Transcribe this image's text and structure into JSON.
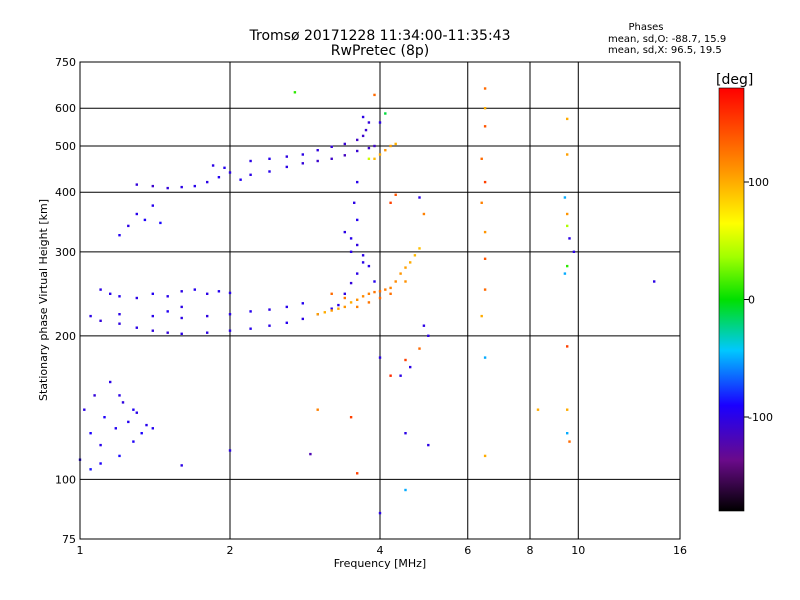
{
  "chart_data": {
    "type": "scatter",
    "title": "Tromsø 20171228 11:34:00-11:35:43",
    "subtitle": "RwPretec (8p)",
    "xlabel": "Frequency [MHz]",
    "ylabel": "Stationary phase Virtual Height [km]",
    "x_scale": "log",
    "y_scale": "log",
    "xlim": [
      1,
      16
    ],
    "ylim": [
      75,
      750
    ],
    "x_ticks": [
      1,
      2,
      4,
      6,
      8,
      10,
      16
    ],
    "x_tick_labels": [
      "1",
      "2",
      "4",
      "6",
      "8",
      "10",
      "16"
    ],
    "y_ticks": [
      75,
      100,
      200,
      300,
      400,
      500,
      600,
      750
    ],
    "y_tick_labels": [
      "75",
      "100",
      "200",
      "300",
      "400",
      "500",
      "600",
      "750"
    ],
    "grid": true,
    "phase_stats": {
      "heading": "Phases",
      "line_o": "mean, sd,O: -88.7, 15.9",
      "line_x": "mean, sd,X:  96.5, 19.5"
    },
    "colorbar": {
      "label": "[deg]",
      "ticks": [
        100,
        0,
        -100
      ],
      "tick_labels": [
        "100",
        "0",
        "-100"
      ],
      "range": [
        -180,
        180
      ]
    },
    "series": [
      {
        "points": [
          [
            1.0,
            110,
            -95
          ],
          [
            1.02,
            140,
            -100
          ],
          [
            1.05,
            125,
            -90
          ],
          [
            1.07,
            150,
            -105
          ],
          [
            1.1,
            118,
            -98
          ],
          [
            1.12,
            135,
            -92
          ],
          [
            1.15,
            160,
            -100
          ],
          [
            1.18,
            128,
            -95
          ],
          [
            1.2,
            112,
            -88
          ],
          [
            1.22,
            145,
            -102
          ],
          [
            1.25,
            132,
            -96
          ],
          [
            1.28,
            120,
            -93
          ],
          [
            1.3,
            138,
            -99
          ],
          [
            1.33,
            125,
            -90
          ],
          [
            1.36,
            130,
            -97
          ],
          [
            1.4,
            128,
            -95
          ],
          [
            1.05,
            105,
            -85
          ],
          [
            1.1,
            108,
            -92
          ],
          [
            1.2,
            150,
            -100
          ],
          [
            1.28,
            140,
            -94
          ],
          [
            1.2,
            325,
            -95
          ],
          [
            1.25,
            340,
            -100
          ],
          [
            1.3,
            360,
            -98
          ],
          [
            1.35,
            350,
            -92
          ],
          [
            1.4,
            375,
            -97
          ],
          [
            1.45,
            345,
            -88
          ],
          [
            1.3,
            415,
            -105
          ],
          [
            1.4,
            412,
            -110
          ],
          [
            1.5,
            408,
            -105
          ],
          [
            1.6,
            410,
            -100
          ],
          [
            1.7,
            412,
            -98
          ],
          [
            1.8,
            420,
            -100
          ],
          [
            1.9,
            430,
            -95
          ],
          [
            2.0,
            440,
            -100
          ],
          [
            2.1,
            425,
            -95
          ],
          [
            2.2,
            435,
            -100
          ],
          [
            2.4,
            442,
            -98
          ],
          [
            2.6,
            452,
            -100
          ],
          [
            2.8,
            460,
            -105
          ],
          [
            3.0,
            465,
            -110
          ],
          [
            3.2,
            470,
            -112
          ],
          [
            3.4,
            478,
            -115
          ],
          [
            3.6,
            488,
            -108
          ],
          [
            3.8,
            495,
            -110
          ],
          [
            3.9,
            500,
            -112
          ],
          [
            2.2,
            465,
            -100
          ],
          [
            2.4,
            470,
            -98
          ],
          [
            2.6,
            475,
            -102
          ],
          [
            2.8,
            480,
            -100
          ],
          [
            3.0,
            490,
            -103
          ],
          [
            3.2,
            498,
            -105
          ],
          [
            3.4,
            505,
            -108
          ],
          [
            3.6,
            515,
            -112
          ],
          [
            3.7,
            525,
            -110
          ],
          [
            3.75,
            540,
            -108
          ],
          [
            3.8,
            560,
            -105
          ],
          [
            3.7,
            575,
            -100
          ],
          [
            1.85,
            455,
            -100
          ],
          [
            1.95,
            450,
            -96
          ],
          [
            3.9,
            470,
            95
          ],
          [
            4.0,
            480,
            100
          ],
          [
            4.1,
            490,
            110
          ],
          [
            4.2,
            500,
            105
          ],
          [
            4.3,
            505,
            98
          ],
          [
            1.1,
            250,
            -100
          ],
          [
            1.15,
            245,
            -98
          ],
          [
            1.2,
            242,
            -96
          ],
          [
            1.3,
            240,
            -100
          ],
          [
            1.4,
            245,
            -95
          ],
          [
            1.5,
            242,
            -98
          ],
          [
            1.6,
            248,
            -100
          ],
          [
            1.7,
            250,
            -97
          ],
          [
            1.8,
            245,
            -100
          ],
          [
            1.9,
            248,
            -96
          ],
          [
            2.0,
            246,
            -98
          ],
          [
            1.6,
            230,
            -100
          ],
          [
            1.5,
            225,
            -95
          ],
          [
            1.05,
            220,
            -100
          ],
          [
            1.1,
            215,
            -105
          ],
          [
            1.2,
            212,
            -102
          ],
          [
            1.3,
            208,
            -100
          ],
          [
            1.4,
            205,
            -103
          ],
          [
            1.5,
            203,
            -105
          ],
          [
            1.6,
            202,
            -100
          ],
          [
            1.8,
            203,
            -102
          ],
          [
            2.0,
            205,
            -100
          ],
          [
            2.2,
            207,
            -98
          ],
          [
            2.4,
            210,
            -100
          ],
          [
            2.6,
            213,
            -97
          ],
          [
            2.8,
            217,
            -100
          ],
          [
            3.0,
            222,
            -98
          ],
          [
            3.2,
            228,
            -95
          ],
          [
            1.2,
            222,
            -100
          ],
          [
            1.4,
            220,
            -98
          ],
          [
            1.6,
            218,
            -100
          ],
          [
            1.8,
            220,
            -102
          ],
          [
            2.0,
            222,
            -100
          ],
          [
            2.2,
            225,
            -97
          ],
          [
            2.4,
            227,
            -100
          ],
          [
            2.6,
            230,
            -98
          ],
          [
            2.8,
            234,
            -96
          ],
          [
            3.3,
            232,
            -100
          ],
          [
            3.4,
            245,
            -102
          ],
          [
            3.5,
            258,
            -105
          ],
          [
            3.6,
            270,
            -100
          ],
          [
            3.7,
            285,
            -98
          ],
          [
            3.5,
            300,
            -100
          ],
          [
            3.6,
            310,
            -102
          ],
          [
            3.7,
            295,
            -100
          ],
          [
            3.8,
            280,
            -98
          ],
          [
            3.9,
            260,
            -96
          ],
          [
            3.4,
            330,
            -100
          ],
          [
            3.5,
            320,
            -98
          ],
          [
            3.6,
            350,
            -95
          ],
          [
            3.55,
            380,
            -100
          ],
          [
            3.6,
            420,
            -98
          ],
          [
            3.0,
            222,
            105
          ],
          [
            3.1,
            224,
            100
          ],
          [
            3.2,
            226,
            108
          ],
          [
            3.3,
            228,
            102
          ],
          [
            3.4,
            230,
            110
          ],
          [
            3.5,
            235,
            100
          ],
          [
            3.6,
            238,
            112
          ],
          [
            3.7,
            242,
            115
          ],
          [
            3.8,
            245,
            120
          ],
          [
            3.9,
            247,
            125
          ],
          [
            4.0,
            248,
            128
          ],
          [
            4.1,
            250,
            122
          ],
          [
            4.2,
            252,
            118
          ],
          [
            4.3,
            260,
            115
          ],
          [
            4.4,
            270,
            110
          ],
          [
            4.5,
            278,
            105
          ],
          [
            4.6,
            285,
            100
          ],
          [
            4.7,
            295,
            95
          ],
          [
            4.8,
            305,
            92
          ],
          [
            3.6,
            230,
            120
          ],
          [
            3.8,
            235,
            125
          ],
          [
            4.0,
            240,
            130
          ],
          [
            4.2,
            245,
            128
          ],
          [
            3.2,
            245,
            130
          ],
          [
            3.4,
            240,
            125
          ],
          [
            4.5,
            260,
            112
          ],
          [
            2.7,
            648,
            10
          ],
          [
            3.9,
            640,
            130
          ],
          [
            4.1,
            585,
            -10
          ],
          [
            4.0,
            560,
            -100
          ],
          [
            3.8,
            470,
            50
          ],
          [
            4.2,
            380,
            150
          ],
          [
            4.3,
            395,
            140
          ],
          [
            4.8,
            390,
            -100
          ],
          [
            4.9,
            360,
            120
          ],
          [
            4.0,
            180,
            -100
          ],
          [
            4.5,
            178,
            150
          ],
          [
            4.2,
            165,
            160
          ],
          [
            4.4,
            165,
            -100
          ],
          [
            4.6,
            172,
            -100
          ],
          [
            4.8,
            188,
            130
          ],
          [
            5.0,
            200,
            -100
          ],
          [
            4.9,
            210,
            -100
          ],
          [
            3.0,
            140,
            120
          ],
          [
            3.5,
            135,
            150
          ],
          [
            4.5,
            125,
            -100
          ],
          [
            5.0,
            118,
            -100
          ],
          [
            3.6,
            103,
            150
          ],
          [
            4.0,
            85,
            -100
          ],
          [
            4.5,
            95,
            -50
          ],
          [
            2.0,
            115,
            -100
          ],
          [
            1.6,
            107,
            -100
          ],
          [
            2.9,
            113,
            -120
          ],
          [
            6.5,
            660,
            130
          ],
          [
            6.5,
            600,
            100
          ],
          [
            6.5,
            550,
            140
          ],
          [
            6.4,
            470,
            130
          ],
          [
            6.5,
            420,
            150
          ],
          [
            6.4,
            380,
            120
          ],
          [
            6.5,
            330,
            110
          ],
          [
            6.5,
            290,
            140
          ],
          [
            6.5,
            250,
            130
          ],
          [
            6.4,
            220,
            100
          ],
          [
            6.5,
            180,
            -50
          ],
          [
            6.5,
            112,
            100
          ],
          [
            9.5,
            570,
            100
          ],
          [
            9.5,
            480,
            105
          ],
          [
            9.4,
            390,
            -50
          ],
          [
            9.5,
            360,
            110
          ],
          [
            9.5,
            340,
            40
          ],
          [
            9.6,
            320,
            -100
          ],
          [
            9.5,
            280,
            10
          ],
          [
            9.4,
            270,
            -50
          ],
          [
            9.5,
            190,
            150
          ],
          [
            9.5,
            140,
            100
          ],
          [
            9.5,
            125,
            -50
          ],
          [
            9.6,
            120,
            130
          ],
          [
            9.8,
            300,
            -100
          ],
          [
            8.3,
            140,
            100
          ],
          [
            14.2,
            260,
            -100
          ]
        ]
      }
    ]
  }
}
